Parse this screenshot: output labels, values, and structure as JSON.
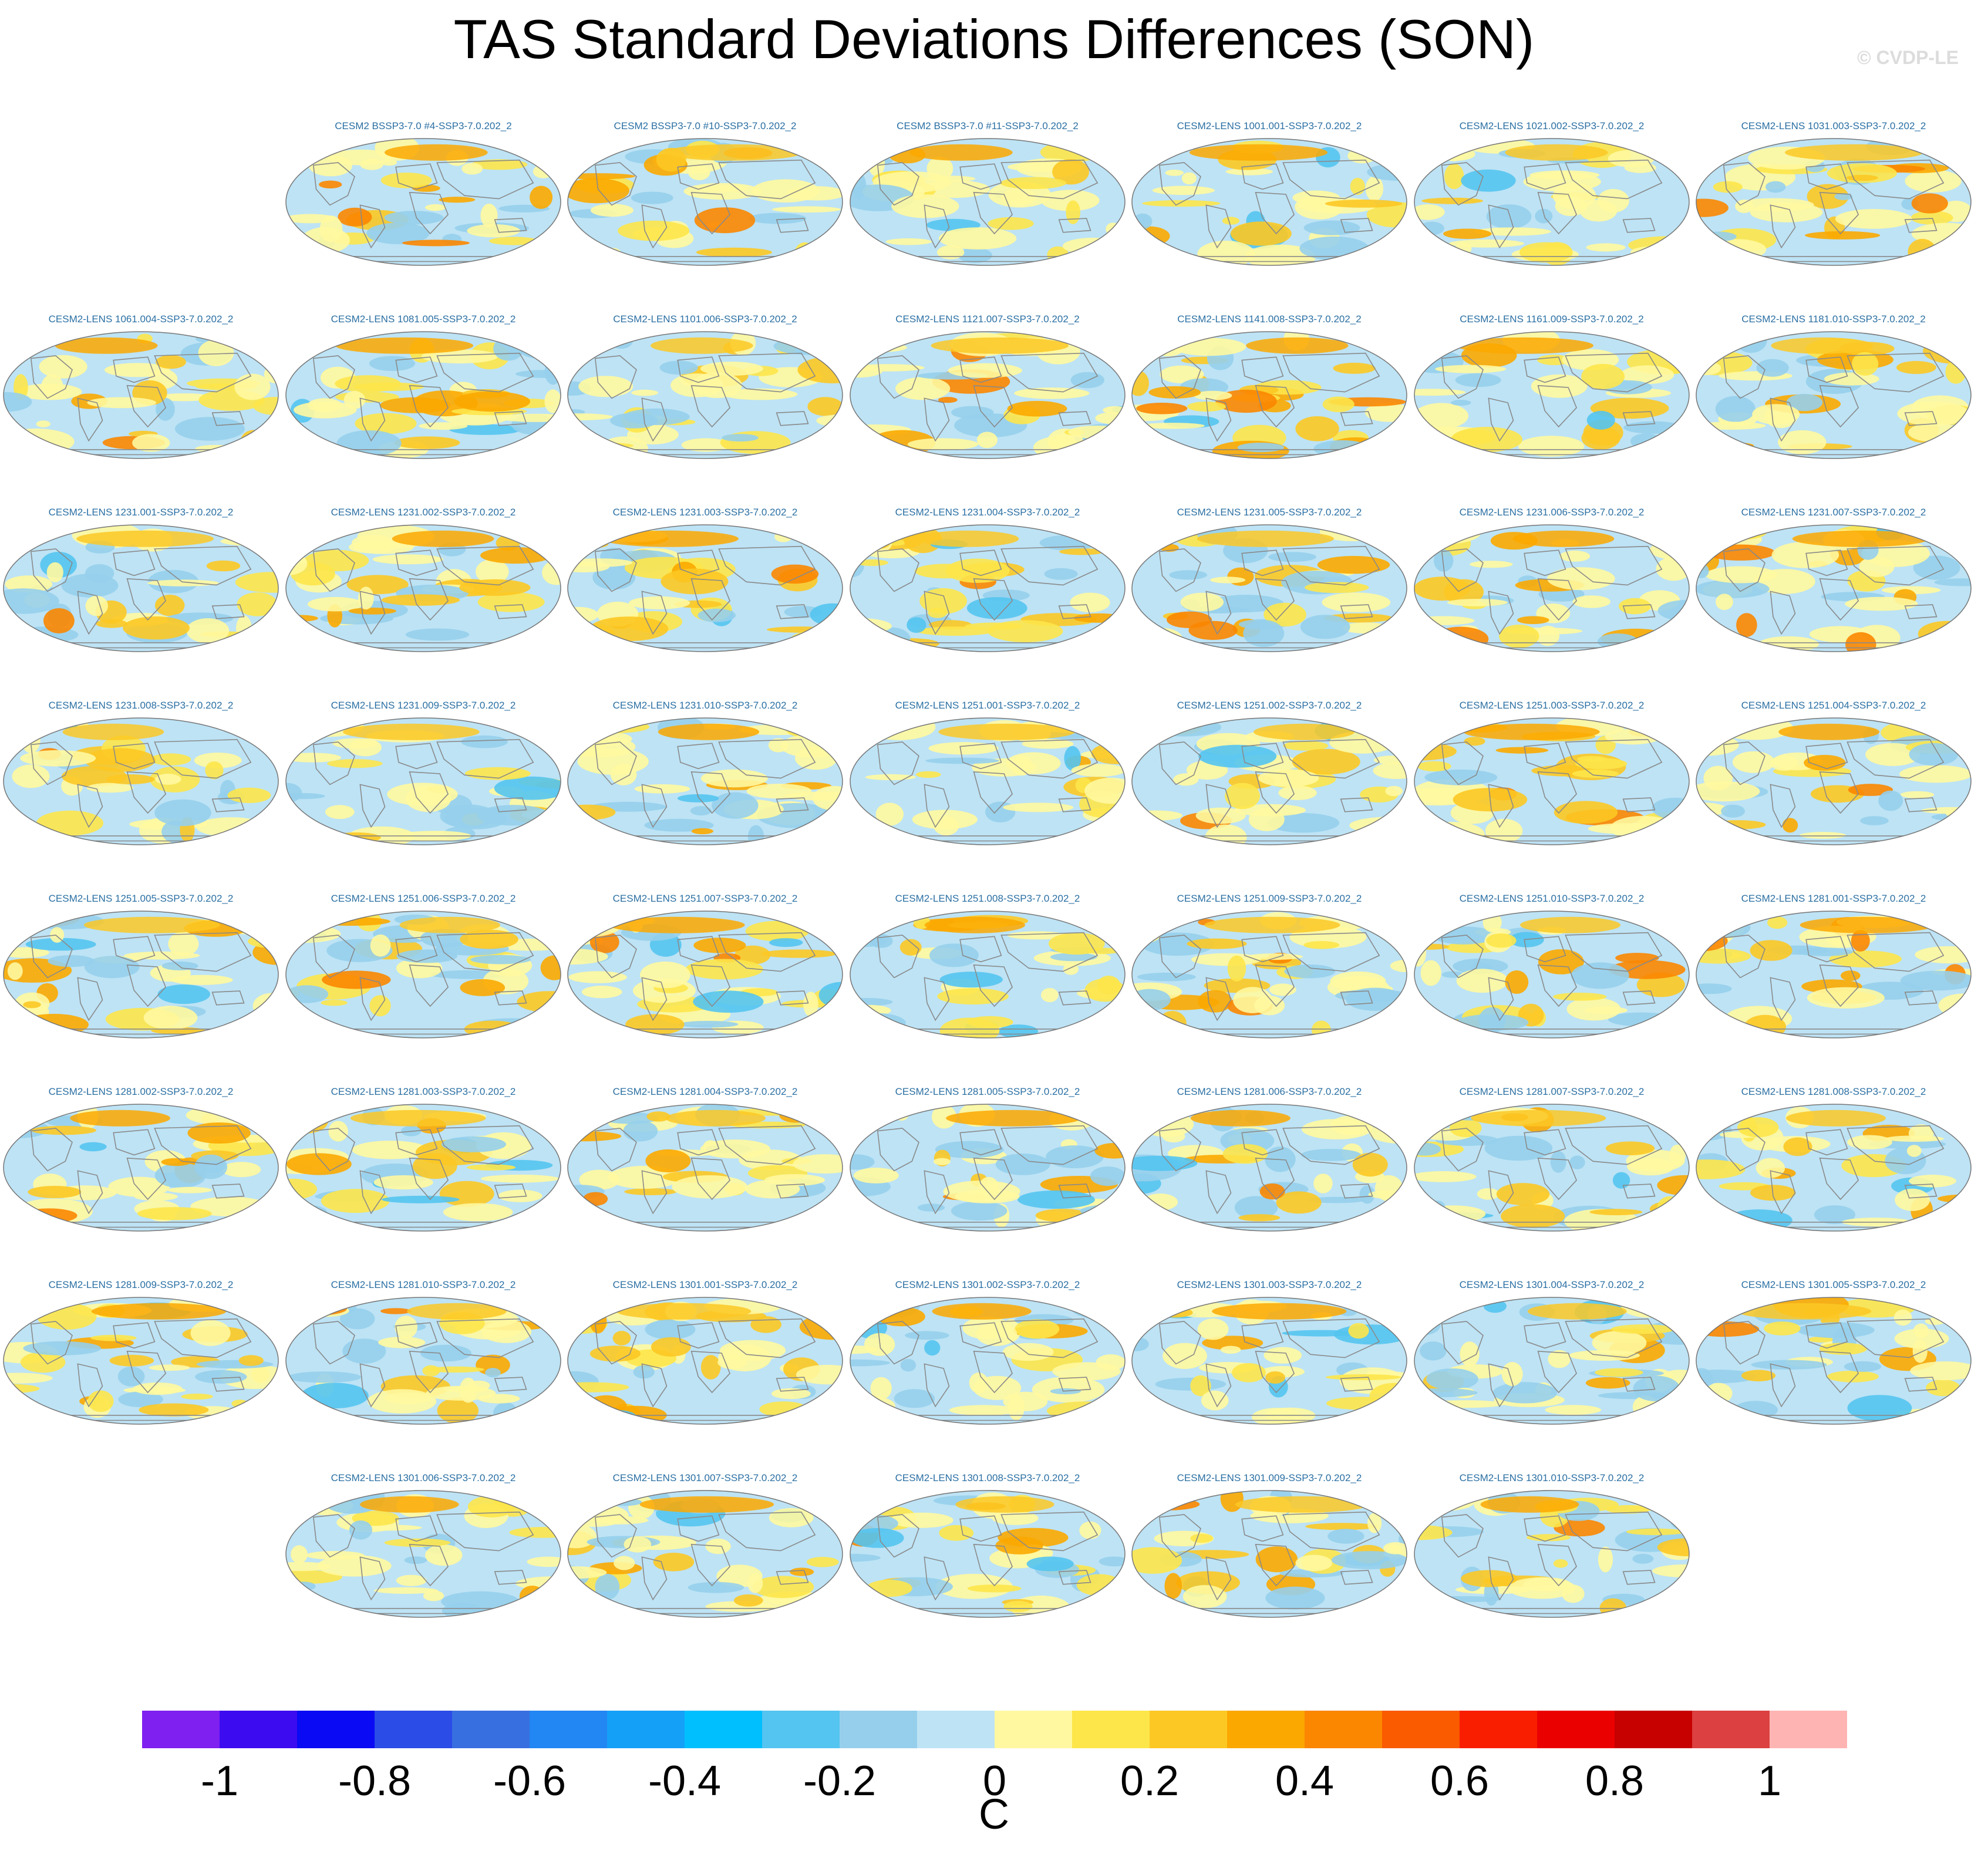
{
  "title": "TAS Standard Deviations Differences (SON)",
  "watermark": "© CVDP-LE",
  "chart_data": {
    "type": "heatmap",
    "title": "TAS Standard Deviations Differences (SON)",
    "projection": "global map (elliptical), repeated small multiples",
    "grid_layout": "8 rows x 7 columns (partial first and last rows)",
    "panels": [
      "CESM2 BSSP3-7.0 #4-SSP3-7.0.202_2",
      "CESM2 BSSP3-7.0 #10-SSP3-7.0.202_2",
      "CESM2 BSSP3-7.0 #11-SSP3-7.0.202_2",
      "CESM2-LENS 1001.001-SSP3-7.0.202_2",
      "CESM2-LENS 1021.002-SSP3-7.0.202_2",
      "CESM2-LENS 1031.003-SSP3-7.0.202_2",
      "CESM2-LENS 1061.004-SSP3-7.0.202_2",
      "CESM2-LENS 1081.005-SSP3-7.0.202_2",
      "CESM2-LENS 1101.006-SSP3-7.0.202_2",
      "CESM2-LENS 1121.007-SSP3-7.0.202_2",
      "CESM2-LENS 1141.008-SSP3-7.0.202_2",
      "CESM2-LENS 1161.009-SSP3-7.0.202_2",
      "CESM2-LENS 1181.010-SSP3-7.0.202_2",
      "CESM2-LENS 1231.001-SSP3-7.0.202_2",
      "CESM2-LENS 1231.002-SSP3-7.0.202_2",
      "CESM2-LENS 1231.003-SSP3-7.0.202_2",
      "CESM2-LENS 1231.004-SSP3-7.0.202_2",
      "CESM2-LENS 1231.005-SSP3-7.0.202_2",
      "CESM2-LENS 1231.006-SSP3-7.0.202_2",
      "CESM2-LENS 1231.007-SSP3-7.0.202_2",
      "CESM2-LENS 1231.008-SSP3-7.0.202_2",
      "CESM2-LENS 1231.009-SSP3-7.0.202_2",
      "CESM2-LENS 1231.010-SSP3-7.0.202_2",
      "CESM2-LENS 1251.001-SSP3-7.0.202_2",
      "CESM2-LENS 1251.002-SSP3-7.0.202_2",
      "CESM2-LENS 1251.003-SSP3-7.0.202_2",
      "CESM2-LENS 1251.004-SSP3-7.0.202_2",
      "CESM2-LENS 1251.005-SSP3-7.0.202_2",
      "CESM2-LENS 1251.006-SSP3-7.0.202_2",
      "CESM2-LENS 1251.007-SSP3-7.0.202_2",
      "CESM2-LENS 1251.008-SSP3-7.0.202_2",
      "CESM2-LENS 1251.009-SSP3-7.0.202_2",
      "CESM2-LENS 1251.010-SSP3-7.0.202_2",
      "CESM2-LENS 1281.001-SSP3-7.0.202_2",
      "CESM2-LENS 1281.002-SSP3-7.0.202_2",
      "CESM2-LENS 1281.003-SSP3-7.0.202_2",
      "CESM2-LENS 1281.004-SSP3-7.0.202_2",
      "CESM2-LENS 1281.005-SSP3-7.0.202_2",
      "CESM2-LENS 1281.006-SSP3-7.0.202_2",
      "CESM2-LENS 1281.007-SSP3-7.0.202_2",
      "CESM2-LENS 1281.008-SSP3-7.0.202_2",
      "CESM2-LENS 1281.009-SSP3-7.0.202_2",
      "CESM2-LENS 1281.010-SSP3-7.0.202_2",
      "CESM2-LENS 1301.001-SSP3-7.0.202_2",
      "CESM2-LENS 1301.002-SSP3-7.0.202_2",
      "CESM2-LENS 1301.003-SSP3-7.0.202_2",
      "CESM2-LENS 1301.004-SSP3-7.0.202_2",
      "CESM2-LENS 1301.005-SSP3-7.0.202_2",
      "CESM2-LENS 1301.006-SSP3-7.0.202_2",
      "CESM2-LENS 1301.007-SSP3-7.0.202_2",
      "CESM2-LENS 1301.008-SSP3-7.0.202_2",
      "CESM2-LENS 1301.009-SSP3-7.0.202_2",
      "CESM2-LENS 1301.010-SSP3-7.0.202_2"
    ],
    "colorbar": {
      "units": "C",
      "range": [
        -1.1,
        1.1
      ],
      "tick_values": [
        -1,
        -0.8,
        -0.6,
        -0.4,
        -0.2,
        0,
        0.2,
        0.4,
        0.6,
        0.8,
        1
      ],
      "tick_labels": [
        "-1",
        "-0.8",
        "-0.6",
        "-0.4",
        "-0.2",
        "0",
        "0.2",
        "0.4",
        "0.6",
        "0.8",
        "1"
      ],
      "colors": [
        "#7f1ff0",
        "#3d0bf0",
        "#0a0af5",
        "#2b4ce6",
        "#386fe0",
        "#2286f3",
        "#15a0f7",
        "#00bfff",
        "#54c4f0",
        "#96cfec",
        "#bde3f5",
        "#fff8a0",
        "#fde64a",
        "#fcc824",
        "#fba800",
        "#fb8600",
        "#fa5a00",
        "#fa1e00",
        "#eb0000",
        "#c70000",
        "#dc4040",
        "#ffb4b4"
      ]
    }
  }
}
